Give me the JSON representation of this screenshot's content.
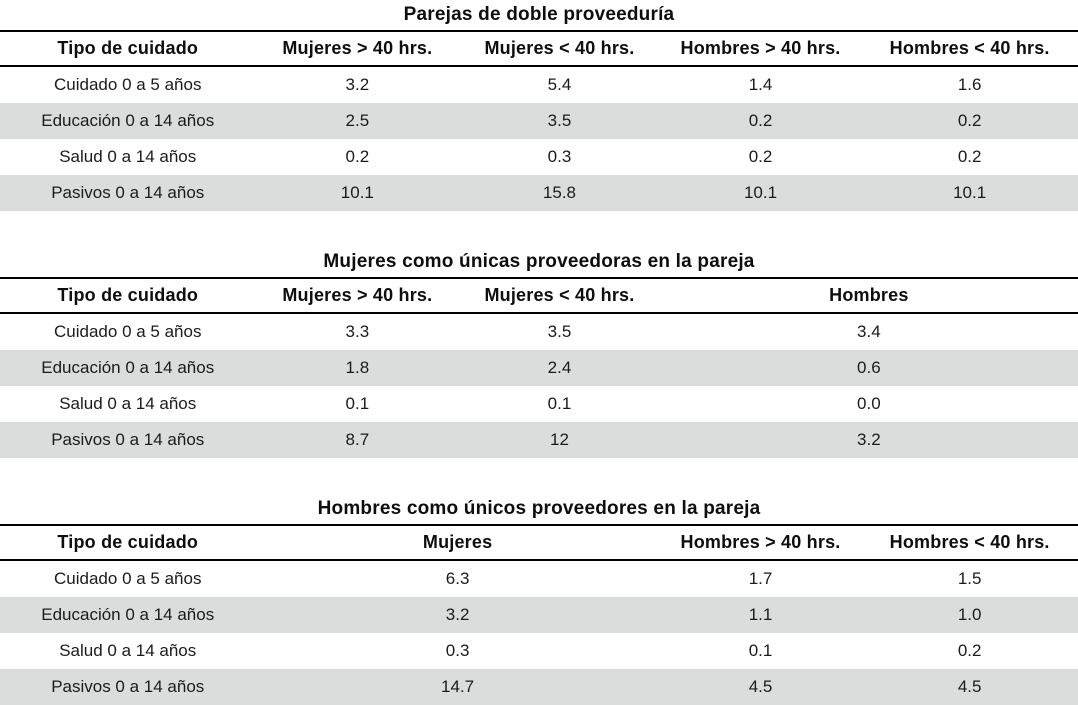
{
  "page": {
    "background": "#ffffff",
    "text_color": "#1b1b1b",
    "heading_color": "#0e0e0e",
    "rule_color": "#000000",
    "stripe_color": "#dbdcdc"
  },
  "tables": [
    {
      "title": "Parejas de doble proveeduría",
      "columns": [
        {
          "label": "Tipo de cuidado",
          "span": 1
        },
        {
          "label": "Mujeres > 40 hrs.",
          "span": 1
        },
        {
          "label": "Mujeres < 40 hrs.",
          "span": 1
        },
        {
          "label": "Hombres > 40 hrs.",
          "span": 1
        },
        {
          "label": "Hombres < 40 hrs.",
          "span": 1
        }
      ],
      "rows": [
        {
          "label": "Cuidado 0 a 5 años",
          "values": [
            "3.2",
            "5.4",
            "1.4",
            "1.6"
          ]
        },
        {
          "label": "Educación 0 a 14 años",
          "values": [
            "2.5",
            "3.5",
            "0.2",
            "0.2"
          ]
        },
        {
          "label": "Salud 0 a 14 años",
          "values": [
            "0.2",
            "0.3",
            "0.2",
            "0.2"
          ]
        },
        {
          "label": "Pasivos 0 a 14 años",
          "values": [
            "10.1",
            "15.8",
            "10.1",
            "10.1"
          ]
        }
      ]
    },
    {
      "title": "Mujeres como únicas proveedoras en la pareja",
      "columns": [
        {
          "label": "Tipo de cuidado",
          "span": 1
        },
        {
          "label": "Mujeres > 40 hrs.",
          "span": 1
        },
        {
          "label": "Mujeres < 40 hrs.",
          "span": 1
        },
        {
          "label": "Hombres",
          "span": 2
        }
      ],
      "rows": [
        {
          "label": "Cuidado 0 a 5 años",
          "values": [
            "3.3",
            "3.5",
            "3.4"
          ]
        },
        {
          "label": "Educación 0 a 14 años",
          "values": [
            "1.8",
            "2.4",
            "0.6"
          ]
        },
        {
          "label": "Salud 0 a 14 años",
          "values": [
            "0.1",
            "0.1",
            "0.0"
          ]
        },
        {
          "label": "Pasivos 0 a 14 años",
          "values": [
            "8.7",
            "12",
            "3.2"
          ]
        }
      ]
    },
    {
      "title": "Hombres como únicos proveedores en la pareja",
      "columns": [
        {
          "label": "Tipo de cuidado",
          "span": 1
        },
        {
          "label": "Mujeres",
          "span": 2
        },
        {
          "label": "Hombres > 40 hrs.",
          "span": 1
        },
        {
          "label": "Hombres < 40 hrs.",
          "span": 1
        }
      ],
      "rows": [
        {
          "label": "Cuidado 0 a 5 años",
          "values": [
            "6.3",
            "1.7",
            "1.5"
          ]
        },
        {
          "label": "Educación 0 a 14 años",
          "values": [
            "3.2",
            "1.1",
            "1.0"
          ]
        },
        {
          "label": "Salud 0 a 14 años",
          "values": [
            "0.3",
            "0.1",
            "0.2"
          ]
        },
        {
          "label": "Pasivos 0 a 14 años",
          "values": [
            "14.7",
            "4.5",
            "4.5"
          ]
        }
      ]
    }
  ]
}
